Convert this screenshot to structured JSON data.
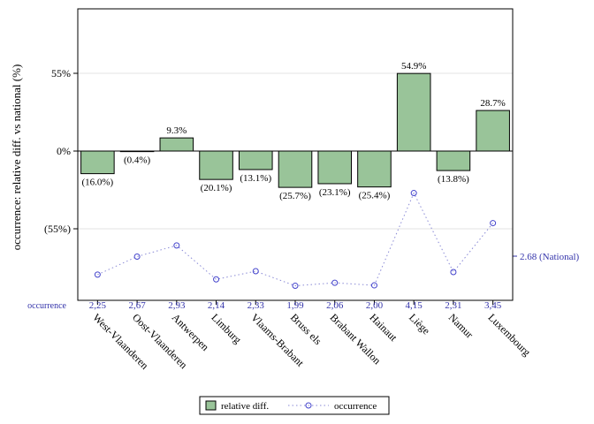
{
  "chart_data": {
    "type": "bar",
    "categories": [
      "West-Vlaanderen",
      "Oost-Vlaanderen",
      "Antwerpen",
      "Limburg",
      "Vlaams-Brabant",
      "Bruss els",
      "Brabant Wallon",
      "Hainaut",
      "Liège",
      "Namur",
      "Luxembourg"
    ],
    "series": [
      {
        "name": "relative diff.",
        "values": [
          -16.0,
          -0.4,
          9.3,
          -20.1,
          -13.1,
          -25.7,
          -23.1,
          -25.4,
          54.9,
          -13.8,
          28.7
        ],
        "labels": [
          "(16.0%)",
          "(0.4%)",
          "9.3%",
          "(20.1%)",
          "(13.1%)",
          "(25.7%)",
          "(23.1%)",
          "(25.4%)",
          "54.9%",
          "(13.8%)",
          "28.7%"
        ],
        "color": "#99c499"
      },
      {
        "name": "occurrence",
        "values": [
          2.25,
          2.67,
          2.93,
          2.14,
          2.33,
          1.99,
          2.06,
          2.0,
          4.15,
          2.31,
          3.45
        ],
        "labels": [
          "2,25",
          "2,67",
          "2,93",
          "2,14",
          "2,33",
          "1,99",
          "2,06",
          "2,00",
          "4,15",
          "2,31",
          "3,45"
        ],
        "color": "#3333cc"
      }
    ],
    "ylabel": "occurrence: relative diff. vs national (%)",
    "yticks": [
      {
        "value": 55,
        "label": "55%"
      },
      {
        "value": 0,
        "label": "0%"
      },
      {
        "value": -55,
        "label": "(55%)"
      }
    ],
    "ylim": [
      -110,
      100
    ],
    "national_value": 2.68,
    "national_label": "2.68 (National)",
    "occurrence_row_label": "occurrence",
    "legend": {
      "position": "bottom",
      "items": [
        "relative diff.",
        "occurrence"
      ]
    },
    "grid": true
  }
}
